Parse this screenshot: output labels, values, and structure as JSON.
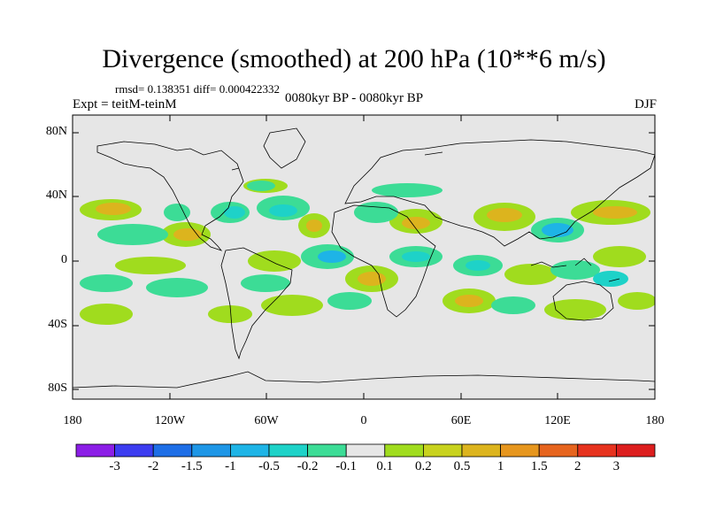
{
  "title": "Divergence (smoothed) at 200 hPa (10**6 m/s)",
  "stats": "rmsd= 0.138351 diff= 0.000422332",
  "period": "0080kyr BP - 0080kyr BP",
  "experiment": "Expt = teitM-teinM",
  "season": "DJF",
  "map": {
    "lat_labels": [
      "80N",
      "40N",
      "0",
      "40S",
      "80S"
    ],
    "lon_labels": [
      "180",
      "120W",
      "60W",
      "0",
      "60E",
      "120E",
      "180"
    ],
    "background_color": "#e6e6e6",
    "coastline_color": "#000000"
  },
  "colorbar": {
    "labels": [
      "-3",
      "-2",
      "-1.5",
      "-1",
      "-0.5",
      "-0.2",
      "-0.1",
      "0.1",
      "0.2",
      "0.5",
      "1",
      "1.5",
      "2",
      "3"
    ],
    "colors": [
      "#8b1ee6",
      "#3c3cf0",
      "#1e6ee6",
      "#1e96e6",
      "#1eb4e6",
      "#1ed2c8",
      "#3cdc96",
      "#e6e6e6",
      "#a0dc1e",
      "#c8d21e",
      "#dcb41e",
      "#e6961e",
      "#e6641e",
      "#e6321e",
      "#dc1e1e"
    ]
  }
}
